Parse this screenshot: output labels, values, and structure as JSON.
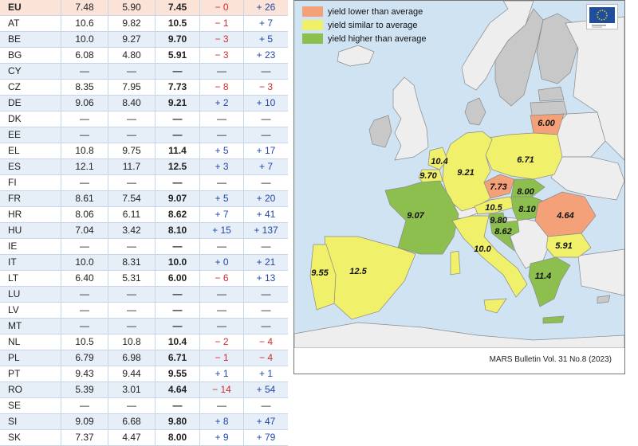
{
  "chart_data": [
    {
      "type": "table",
      "columns": [
        "",
        "",
        "",
        "",
        "",
        ""
      ],
      "rows": [
        {
          "country": "EU",
          "v1": "7.48",
          "v2": "5.90",
          "v3": "7.45",
          "d1": "− 0",
          "d2": "+ 26"
        },
        {
          "country": "AT",
          "v1": "10.6",
          "v2": "9.82",
          "v3": "10.5",
          "d1": "− 1",
          "d2": "+ 7"
        },
        {
          "country": "BE",
          "v1": "10.0",
          "v2": "9.27",
          "v3": "9.70",
          "d1": "− 3",
          "d2": "+ 5"
        },
        {
          "country": "BG",
          "v1": "6.08",
          "v2": "4.80",
          "v3": "5.91",
          "d1": "− 3",
          "d2": "+ 23"
        },
        {
          "country": "CY",
          "v1": "—",
          "v2": "—",
          "v3": "—",
          "d1": "—",
          "d2": "—"
        },
        {
          "country": "CZ",
          "v1": "8.35",
          "v2": "7.95",
          "v3": "7.73",
          "d1": "− 8",
          "d2": "− 3"
        },
        {
          "country": "DE",
          "v1": "9.06",
          "v2": "8.40",
          "v3": "9.21",
          "d1": "+ 2",
          "d2": "+ 10"
        },
        {
          "country": "DK",
          "v1": "—",
          "v2": "—",
          "v3": "—",
          "d1": "—",
          "d2": "—"
        },
        {
          "country": "EE",
          "v1": "—",
          "v2": "—",
          "v3": "—",
          "d1": "—",
          "d2": "—"
        },
        {
          "country": "EL",
          "v1": "10.8",
          "v2": "9.75",
          "v3": "11.4",
          "d1": "+ 5",
          "d2": "+ 17"
        },
        {
          "country": "ES",
          "v1": "12.1",
          "v2": "11.7",
          "v3": "12.5",
          "d1": "+ 3",
          "d2": "+ 7"
        },
        {
          "country": "FI",
          "v1": "—",
          "v2": "—",
          "v3": "—",
          "d1": "—",
          "d2": "—"
        },
        {
          "country": "FR",
          "v1": "8.61",
          "v2": "7.54",
          "v3": "9.07",
          "d1": "+ 5",
          "d2": "+ 20"
        },
        {
          "country": "HR",
          "v1": "8.06",
          "v2": "6.11",
          "v3": "8.62",
          "d1": "+ 7",
          "d2": "+ 41"
        },
        {
          "country": "HU",
          "v1": "7.04",
          "v2": "3.42",
          "v3": "8.10",
          "d1": "+ 15",
          "d2": "+ 137"
        },
        {
          "country": "IE",
          "v1": "—",
          "v2": "—",
          "v3": "—",
          "d1": "—",
          "d2": "—"
        },
        {
          "country": "IT",
          "v1": "10.0",
          "v2": "8.31",
          "v3": "10.0",
          "d1": "+ 0",
          "d2": "+ 21"
        },
        {
          "country": "LT",
          "v1": "6.40",
          "v2": "5.31",
          "v3": "6.00",
          "d1": "− 6",
          "d2": "+ 13"
        },
        {
          "country": "LU",
          "v1": "—",
          "v2": "—",
          "v3": "—",
          "d1": "—",
          "d2": "—"
        },
        {
          "country": "LV",
          "v1": "—",
          "v2": "—",
          "v3": "—",
          "d1": "—",
          "d2": "—"
        },
        {
          "country": "MT",
          "v1": "—",
          "v2": "—",
          "v3": "—",
          "d1": "—",
          "d2": "—"
        },
        {
          "country": "NL",
          "v1": "10.5",
          "v2": "10.8",
          "v3": "10.4",
          "d1": "− 2",
          "d2": "− 4"
        },
        {
          "country": "PL",
          "v1": "6.79",
          "v2": "6.98",
          "v3": "6.71",
          "d1": "− 1",
          "d2": "− 4"
        },
        {
          "country": "PT",
          "v1": "9.43",
          "v2": "9.44",
          "v3": "9.55",
          "d1": "+ 1",
          "d2": "+ 1"
        },
        {
          "country": "RO",
          "v1": "5.39",
          "v2": "3.01",
          "v3": "4.64",
          "d1": "− 14",
          "d2": "+ 54"
        },
        {
          "country": "SE",
          "v1": "—",
          "v2": "—",
          "v3": "—",
          "d1": "—",
          "d2": "—"
        },
        {
          "country": "SI",
          "v1": "9.09",
          "v2": "6.68",
          "v3": "9.80",
          "d1": "+ 8",
          "d2": "+ 47"
        },
        {
          "country": "SK",
          "v1": "7.37",
          "v2": "4.47",
          "v3": "8.00",
          "d1": "+ 9",
          "d2": "+ 79"
        }
      ]
    },
    {
      "type": "heatmap",
      "legend": [
        {
          "label": "yield lower than average",
          "color": "#f4a078"
        },
        {
          "label": "yield similar to average",
          "color": "#f0f06a"
        },
        {
          "label": "yield higher than average",
          "color": "#8dbf4f"
        }
      ],
      "regions": [
        {
          "country": "LT",
          "value": "6.00",
          "category": "lower"
        },
        {
          "country": "NL",
          "value": "10.4",
          "category": "similar"
        },
        {
          "country": "BE",
          "value": "9.70",
          "category": "similar"
        },
        {
          "country": "DE",
          "value": "9.21",
          "category": "similar"
        },
        {
          "country": "PL",
          "value": "6.71",
          "category": "similar"
        },
        {
          "country": "CZ",
          "value": "7.73",
          "category": "lower"
        },
        {
          "country": "SK",
          "value": "8.00",
          "category": "higher"
        },
        {
          "country": "AT",
          "value": "10.5",
          "category": "similar"
        },
        {
          "country": "HU",
          "value": "8.10",
          "category": "higher"
        },
        {
          "country": "SI",
          "value": "9.80",
          "category": "higher"
        },
        {
          "country": "HR",
          "value": "8.62",
          "category": "higher"
        },
        {
          "country": "RO",
          "value": "4.64",
          "category": "lower"
        },
        {
          "country": "FR",
          "value": "9.07",
          "category": "higher"
        },
        {
          "country": "IT",
          "value": "10.0",
          "category": "similar"
        },
        {
          "country": "BG",
          "value": "5.91",
          "category": "similar"
        },
        {
          "country": "PT",
          "value": "9.55",
          "category": "similar"
        },
        {
          "country": "ES",
          "value": "12.5",
          "category": "similar"
        },
        {
          "country": "EL",
          "value": "11.4",
          "category": "higher"
        }
      ],
      "source": "MARS Bulletin Vol. 31 No.8 (2023)"
    }
  ],
  "colors": {
    "lower": "#f4a078",
    "similar": "#f0f06a",
    "higher": "#8dbf4f",
    "no_data": "#c8c8c8",
    "sea": "#cfe3f2",
    "non_eu": "#eeeeee",
    "negative_text": "#d42a2a",
    "positive_text": "#2147a8"
  }
}
